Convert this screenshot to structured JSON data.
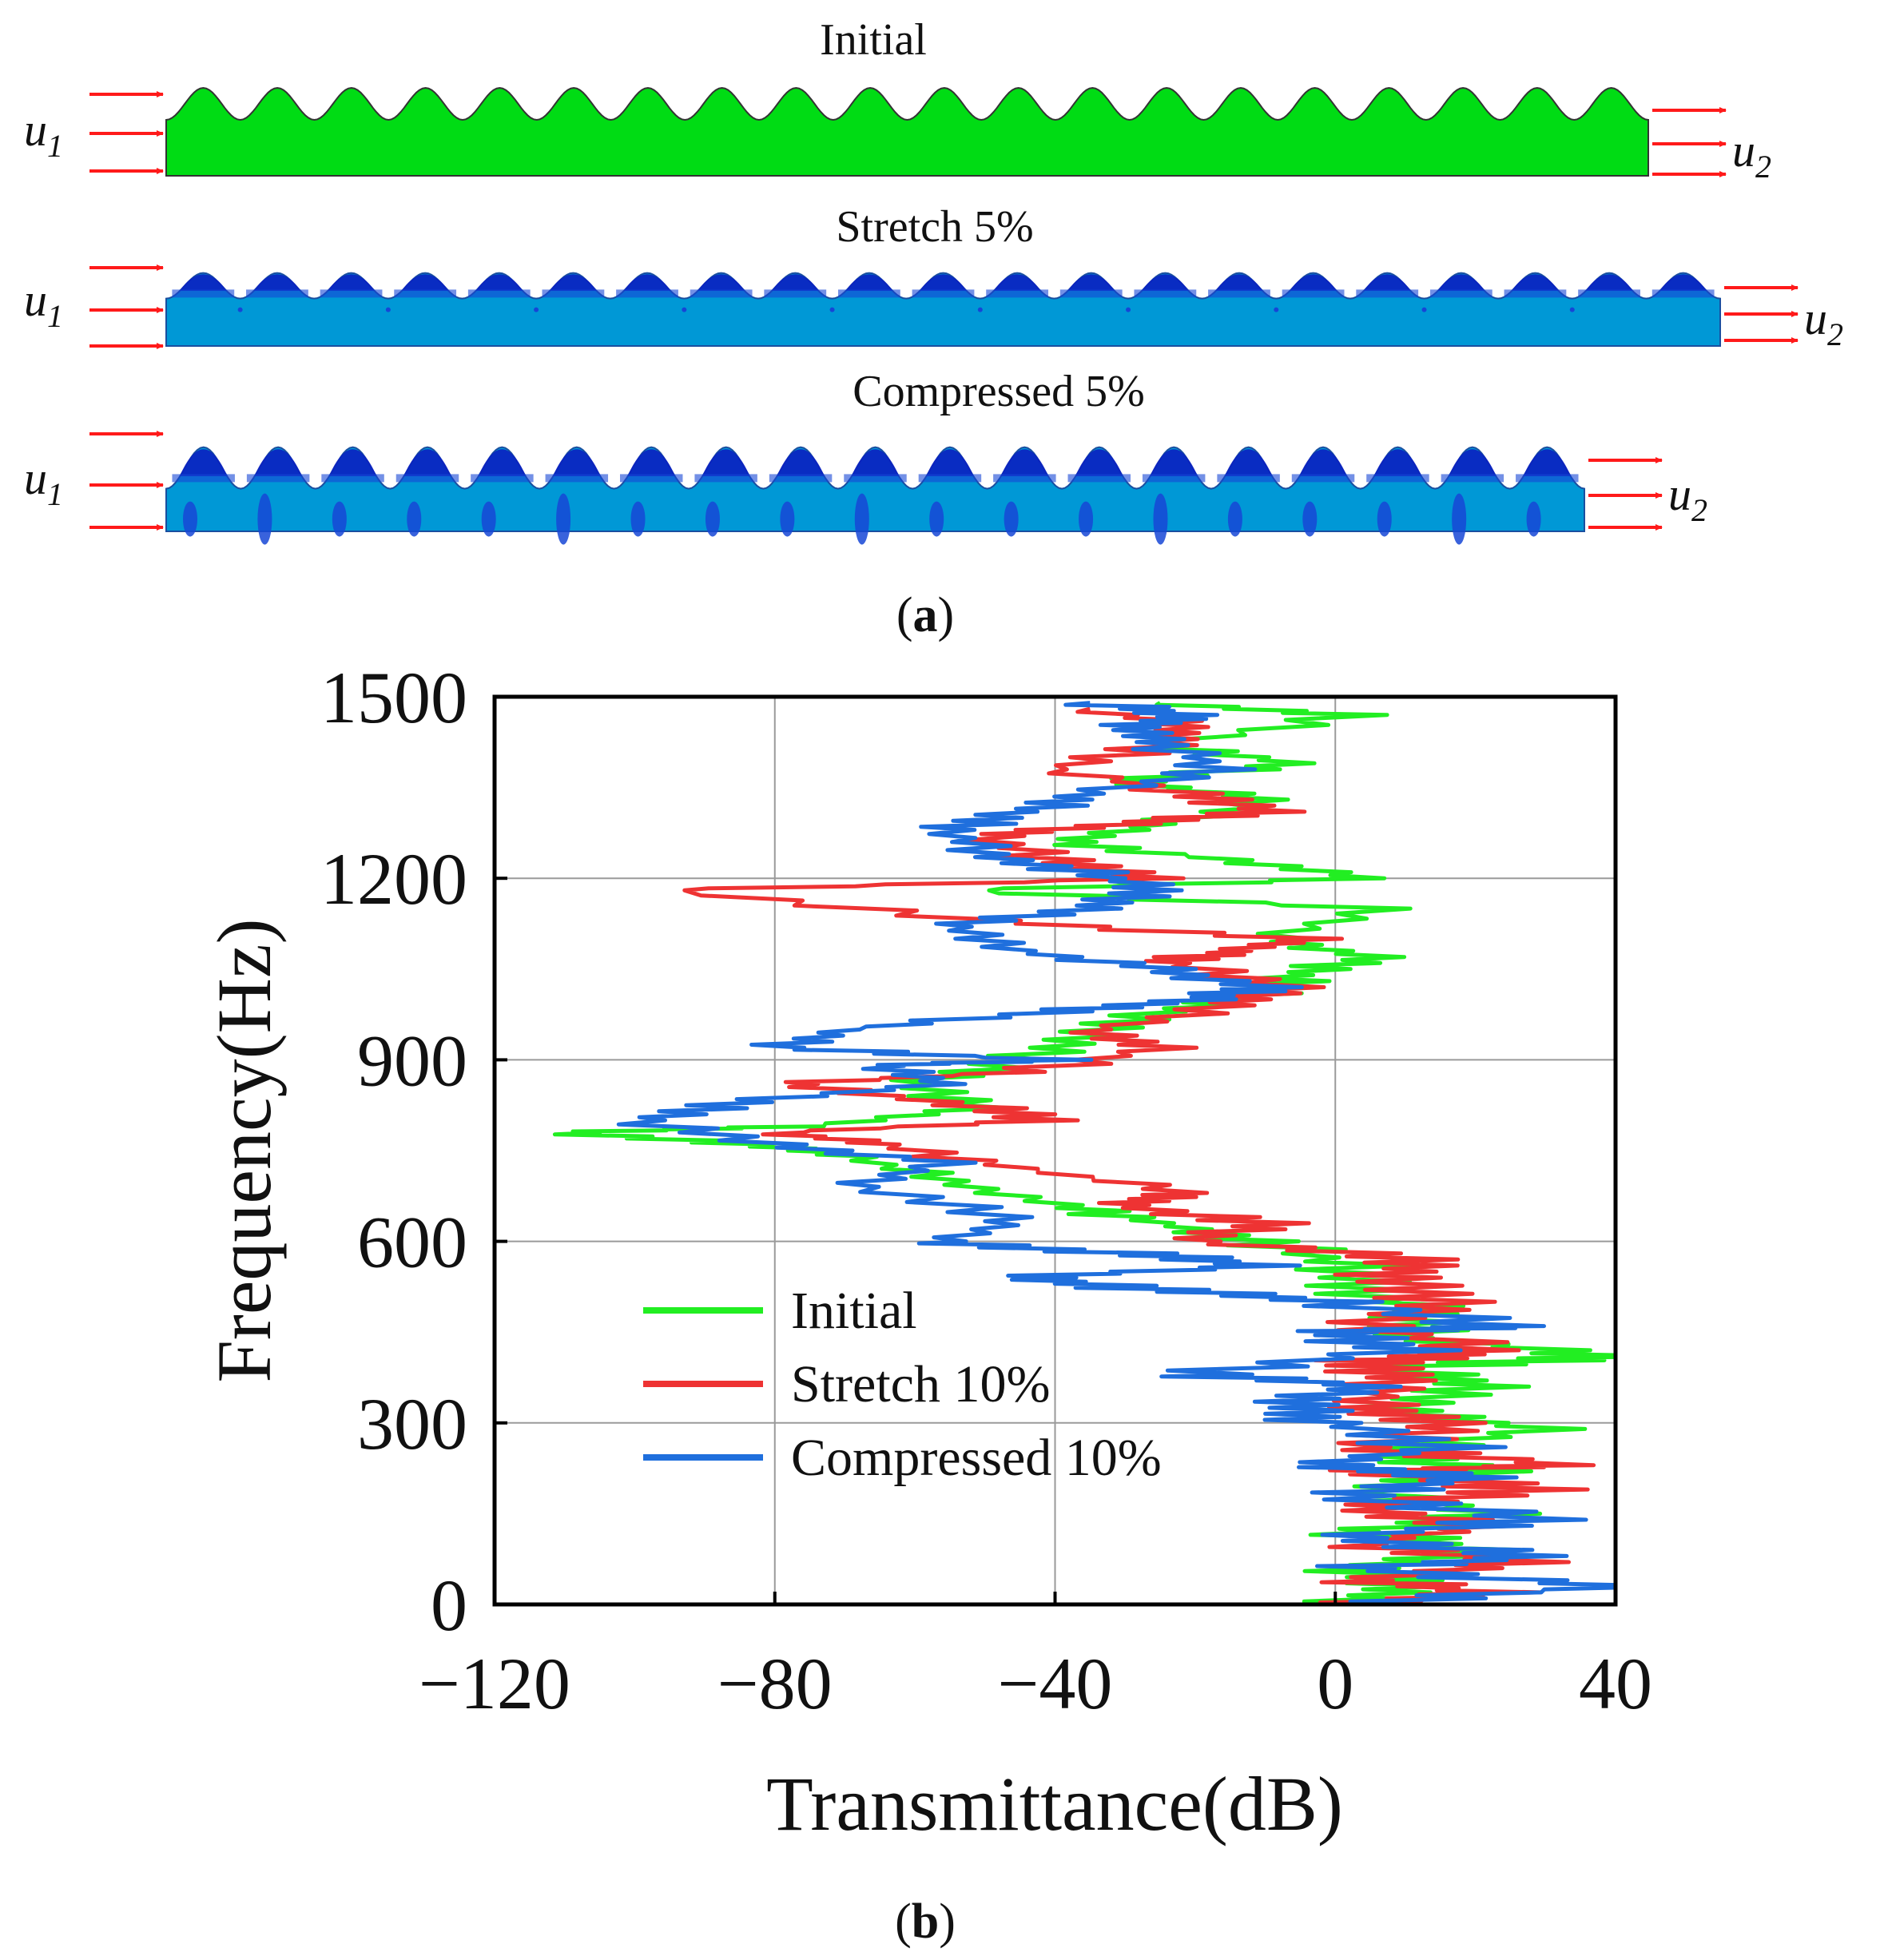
{
  "panel_a": {
    "label": "(a)",
    "rows": [
      {
        "title": "Initial",
        "fill": "#00dc14",
        "input_label": "u",
        "input_sub": "1",
        "output_label": "u",
        "output_sub": "2"
      },
      {
        "title": "Stretch 5%",
        "fill": "#0098d6",
        "input_label": "u",
        "input_sub": "1",
        "output_label": "u",
        "output_sub": "2"
      },
      {
        "title": "Compressed 5%",
        "fill": "#0098d6",
        "input_label": "u",
        "input_sub": "1",
        "output_label": "u",
        "output_sub": "2"
      }
    ],
    "colors": {
      "arrow": "#ff1a1a",
      "highlight": "#1646d6",
      "deep": "#0a20c0"
    }
  },
  "chart_data": {
    "type": "line",
    "panel_label": "(b)",
    "xlabel": "Transmittance(dB)",
    "ylabel": "Frequency(Hz)",
    "xlim": [
      -120,
      40
    ],
    "ylim": [
      0,
      1500
    ],
    "x_ticks": [
      -120,
      -80,
      -40,
      0,
      40
    ],
    "x_tick_labels": [
      "−120",
      "−80",
      "−40",
      "0",
      "40"
    ],
    "y_ticks": [
      0,
      300,
      600,
      900,
      1200,
      1500
    ],
    "y_tick_labels": [
      "0",
      "300",
      "600",
      "900",
      "1200",
      "1500"
    ],
    "grid": true,
    "legend_position": "center-left",
    "series": [
      {
        "name": "Initial",
        "color": "#22ee22",
        "points": [
          [
            0,
            0
          ],
          [
            12,
            30
          ],
          [
            2,
            60
          ],
          [
            20,
            90
          ],
          [
            3,
            120
          ],
          [
            22,
            150
          ],
          [
            4,
            190
          ],
          [
            25,
            220
          ],
          [
            5,
            250
          ],
          [
            30,
            290
          ],
          [
            6,
            320
          ],
          [
            22,
            360
          ],
          [
            8,
            390
          ],
          [
            40,
            410
          ],
          [
            10,
            440
          ],
          [
            15,
            480
          ],
          [
            5,
            520
          ],
          [
            2,
            560
          ],
          [
            -10,
            600
          ],
          [
            -25,
            630
          ],
          [
            -40,
            660
          ],
          [
            -55,
            700
          ],
          [
            -70,
            740
          ],
          [
            -82,
            760
          ],
          [
            -110,
            780
          ],
          [
            -75,
            790
          ],
          [
            -50,
            820
          ],
          [
            -60,
            860
          ],
          [
            -45,
            900
          ],
          [
            -35,
            940
          ],
          [
            -25,
            980
          ],
          [
            -10,
            1010
          ],
          [
            -5,
            1040
          ],
          [
            5,
            1070
          ],
          [
            -10,
            1100
          ],
          [
            8,
            1150
          ],
          [
            -55,
            1180
          ],
          [
            5,
            1200
          ],
          [
            -15,
            1230
          ],
          [
            -40,
            1260
          ],
          [
            -25,
            1290
          ],
          [
            -10,
            1330
          ],
          [
            -30,
            1360
          ],
          [
            -5,
            1390
          ],
          [
            -25,
            1420
          ],
          [
            2,
            1470
          ],
          [
            -25,
            1490
          ]
        ]
      },
      {
        "name": "Stretch 10%",
        "color": "#ee3333",
        "points": [
          [
            0,
            0
          ],
          [
            20,
            20
          ],
          [
            5,
            40
          ],
          [
            25,
            70
          ],
          [
            2,
            100
          ],
          [
            22,
            130
          ],
          [
            4,
            160
          ],
          [
            28,
            190
          ],
          [
            3,
            220
          ],
          [
            33,
            230
          ],
          [
            5,
            260
          ],
          [
            18,
            300
          ],
          [
            4,
            330
          ],
          [
            10,
            370
          ],
          [
            3,
            400
          ],
          [
            22,
            420
          ],
          [
            6,
            460
          ],
          [
            15,
            500
          ],
          [
            8,
            540
          ],
          [
            12,
            570
          ],
          [
            -20,
            600
          ],
          [
            -10,
            630
          ],
          [
            -30,
            660
          ],
          [
            -20,
            680
          ],
          [
            -45,
            720
          ],
          [
            -65,
            760
          ],
          [
            -80,
            780
          ],
          [
            -40,
            800
          ],
          [
            -55,
            830
          ],
          [
            -80,
            860
          ],
          [
            -45,
            880
          ],
          [
            -25,
            920
          ],
          [
            -35,
            950
          ],
          [
            -15,
            990
          ],
          [
            -5,
            1020
          ],
          [
            -25,
            1060
          ],
          [
            -15,
            1080
          ],
          [
            -5,
            1100
          ],
          [
            -50,
            1130
          ],
          [
            -95,
            1180
          ],
          [
            -25,
            1200
          ],
          [
            -40,
            1230
          ],
          [
            -50,
            1270
          ],
          [
            -30,
            1290
          ],
          [
            -10,
            1310
          ],
          [
            -20,
            1340
          ],
          [
            -40,
            1380
          ],
          [
            -25,
            1420
          ],
          [
            -20,
            1450
          ],
          [
            -35,
            1480
          ]
        ]
      },
      {
        "name": "Compressed 10%",
        "color": "#1f6fdd",
        "points": [
          [
            0,
            0
          ],
          [
            40,
            30
          ],
          [
            2,
            60
          ],
          [
            30,
            80
          ],
          [
            0,
            110
          ],
          [
            28,
            140
          ],
          [
            2,
            180
          ],
          [
            20,
            210
          ],
          [
            -3,
            230
          ],
          [
            15,
            260
          ],
          [
            0,
            300
          ],
          [
            -8,
            330
          ],
          [
            5,
            360
          ],
          [
            -20,
            380
          ],
          [
            10,
            420
          ],
          [
            0,
            450
          ],
          [
            25,
            460
          ],
          [
            0,
            500
          ],
          [
            -25,
            520
          ],
          [
            -45,
            540
          ],
          [
            -10,
            560
          ],
          [
            -30,
            580
          ],
          [
            -55,
            600
          ],
          [
            -45,
            640
          ],
          [
            -70,
            690
          ],
          [
            -55,
            730
          ],
          [
            -80,
            760
          ],
          [
            -100,
            800
          ],
          [
            -85,
            830
          ],
          [
            -55,
            860
          ],
          [
            -65,
            890
          ],
          [
            -40,
            900
          ],
          [
            -80,
            920
          ],
          [
            -70,
            950
          ],
          [
            -40,
            980
          ],
          [
            -20,
            1000
          ],
          [
            -10,
            1020
          ],
          [
            -25,
            1050
          ],
          [
            -45,
            1080
          ],
          [
            -55,
            1120
          ],
          [
            -35,
            1150
          ],
          [
            -25,
            1180
          ],
          [
            -35,
            1210
          ],
          [
            -50,
            1240
          ],
          [
            -55,
            1280
          ],
          [
            -45,
            1310
          ],
          [
            -35,
            1340
          ],
          [
            -15,
            1380
          ],
          [
            -25,
            1420
          ],
          [
            -30,
            1450
          ],
          [
            -20,
            1470
          ],
          [
            -35,
            1490
          ]
        ]
      }
    ]
  }
}
